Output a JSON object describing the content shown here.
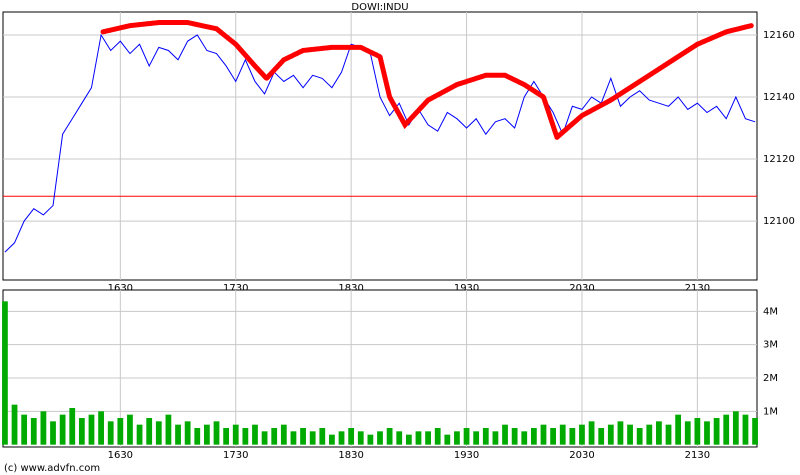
{
  "chart_data": [
    {
      "type": "line",
      "title": "DOWI:INDU",
      "x": [
        930,
        935,
        940,
        945,
        950,
        955,
        960,
        965,
        970,
        975,
        980,
        985,
        990,
        995,
        1000,
        1005,
        1010,
        1015,
        1020,
        1025,
        1030,
        1035,
        1040,
        1045,
        1050,
        1055,
        1060,
        1065,
        1070,
        1075,
        1080,
        1085,
        1090,
        1095,
        1100,
        1105,
        1110,
        1115,
        1120,
        1125,
        1130,
        1135,
        1140,
        1145,
        1150,
        1155,
        1160,
        1165,
        1170,
        1175,
        1180,
        1185,
        1190,
        1195,
        1200,
        1205,
        1210,
        1215,
        1220,
        1225,
        1230,
        1235,
        1240,
        1245,
        1250,
        1255,
        1260,
        1265,
        1270,
        1275,
        1280,
        1285,
        1290,
        1295,
        1300,
        1305,
        1310,
        1315,
        1320
      ],
      "series": [
        {
          "color": "#0000ff",
          "values": [
            12090,
            12093,
            12100,
            12104,
            12102,
            12105,
            12128,
            12133,
            12138,
            12143,
            12160,
            12155,
            12158,
            12154,
            12157,
            12150,
            12156,
            12155,
            12152,
            12158,
            12160,
            12155,
            12154,
            12150,
            12145,
            12152,
            12145,
            12141,
            12148,
            12145,
            12147,
            12143,
            12147,
            12146,
            12143,
            12148,
            12157,
            12156,
            12154,
            12140,
            12134,
            12138,
            12131,
            12136,
            12131,
            12129,
            12135,
            12133,
            12130,
            12133,
            12128,
            12132,
            12133,
            12130,
            12140,
            12145,
            12140,
            12135,
            12128,
            12137,
            12136,
            12140,
            12138,
            12146,
            12137,
            12140,
            12142,
            12139,
            12138,
            12137,
            12140,
            12136,
            12138,
            12135,
            12137,
            12133,
            12140,
            12133,
            12132
          ]
        }
      ],
      "overlay": {
        "color": "#ff0000",
        "x": [
          981,
          995,
          1010,
          1025,
          1040,
          1050,
          1060,
          1066,
          1075,
          1085,
          1100,
          1115,
          1125,
          1130,
          1138,
          1150,
          1165,
          1180,
          1190,
          1200,
          1210,
          1217,
          1230,
          1245,
          1260,
          1275,
          1290,
          1305,
          1318
        ],
        "values": [
          12161,
          12163,
          12164,
          12164,
          12162,
          12157,
          12150,
          12146,
          12152,
          12155,
          12156,
          12156,
          12153,
          12140,
          12131,
          12139,
          12144,
          12147,
          12147,
          12144,
          12140,
          12127,
          12134,
          12139,
          12145,
          12151,
          12157,
          12161,
          12163
        ]
      },
      "reference_line": {
        "value": 12108,
        "color": "#ff0000"
      },
      "xlim": [
        929,
        1321
      ],
      "xticks": [
        {
          "value": 990,
          "label": "1630"
        },
        {
          "value": 1050,
          "label": "1730"
        },
        {
          "value": 1110,
          "label": "1830"
        },
        {
          "value": 1170,
          "label": "1930"
        },
        {
          "value": 1230,
          "label": "2030"
        },
        {
          "value": 1290,
          "label": "2130"
        }
      ],
      "ylim": [
        12081,
        12167.4
      ],
      "yticks": [
        12100,
        12120,
        12140,
        12160
      ],
      "grid": true
    },
    {
      "type": "bar",
      "color": "#00aa00",
      "x": [
        930,
        935,
        940,
        945,
        950,
        955,
        960,
        965,
        970,
        975,
        980,
        985,
        990,
        995,
        1000,
        1005,
        1010,
        1015,
        1020,
        1025,
        1030,
        1035,
        1040,
        1045,
        1050,
        1055,
        1060,
        1065,
        1070,
        1075,
        1080,
        1085,
        1090,
        1095,
        1100,
        1105,
        1110,
        1115,
        1120,
        1125,
        1130,
        1135,
        1140,
        1145,
        1150,
        1155,
        1160,
        1165,
        1170,
        1175,
        1180,
        1185,
        1190,
        1195,
        1200,
        1205,
        1210,
        1215,
        1220,
        1225,
        1230,
        1235,
        1240,
        1245,
        1250,
        1255,
        1260,
        1265,
        1270,
        1275,
        1280,
        1285,
        1290,
        1295,
        1300,
        1305,
        1310,
        1315,
        1320
      ],
      "values": [
        4.3,
        1.2,
        0.9,
        0.8,
        1.0,
        0.7,
        0.9,
        1.1,
        0.8,
        0.9,
        1.0,
        0.7,
        0.8,
        0.9,
        0.6,
        0.8,
        0.7,
        0.9,
        0.6,
        0.7,
        0.5,
        0.6,
        0.7,
        0.5,
        0.6,
        0.5,
        0.6,
        0.4,
        0.5,
        0.6,
        0.4,
        0.5,
        0.4,
        0.5,
        0.3,
        0.4,
        0.5,
        0.4,
        0.3,
        0.4,
        0.5,
        0.4,
        0.3,
        0.4,
        0.4,
        0.5,
        0.3,
        0.4,
        0.5,
        0.4,
        0.5,
        0.4,
        0.6,
        0.5,
        0.4,
        0.5,
        0.6,
        0.5,
        0.6,
        0.5,
        0.6,
        0.7,
        0.5,
        0.6,
        0.7,
        0.6,
        0.5,
        0.6,
        0.7,
        0.6,
        0.9,
        0.7,
        0.8,
        0.7,
        0.8,
        0.9,
        1.0,
        0.9,
        0.8
      ],
      "xlim": [
        929,
        1321
      ],
      "xticks": [
        {
          "value": 990,
          "label": "1630"
        },
        {
          "value": 1050,
          "label": "1730"
        },
        {
          "value": 1110,
          "label": "1830"
        },
        {
          "value": 1170,
          "label": "1930"
        },
        {
          "value": 1230,
          "label": "2030"
        },
        {
          "value": 1290,
          "label": "2130"
        }
      ],
      "ylim": [
        -0.07,
        4.64
      ],
      "yticks": [
        {
          "value": 1,
          "label": "1M"
        },
        {
          "value": 2,
          "label": "2M"
        },
        {
          "value": 3,
          "label": "3M"
        },
        {
          "value": 4,
          "label": "4M"
        }
      ],
      "grid": true
    }
  ],
  "footer": "(c) www.advfn.com"
}
